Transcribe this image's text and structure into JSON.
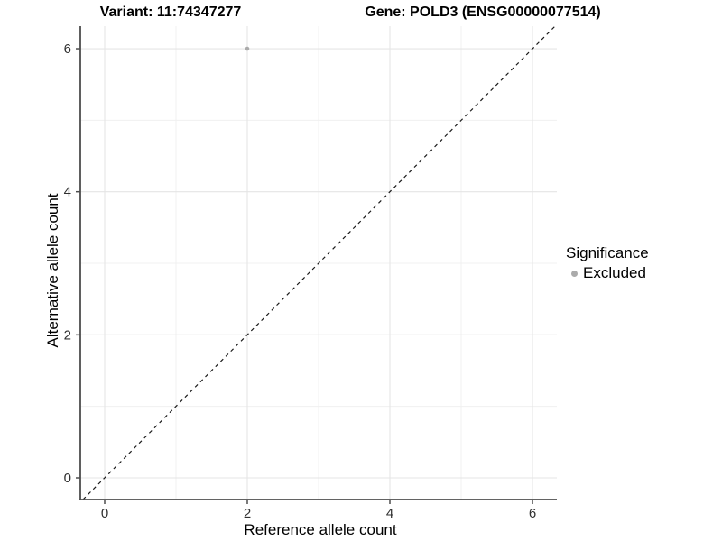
{
  "titles": {
    "left": "Variant: 11:74347277",
    "right": "Gene: POLD3 (ENSG00000077514)"
  },
  "axes": {
    "x": {
      "label": "Reference allele count"
    },
    "y": {
      "label": "Alternative allele count"
    }
  },
  "legend": {
    "title": "Significance",
    "items": [
      {
        "label": "Excluded",
        "color": "#ababab"
      }
    ]
  },
  "chart_data": {
    "type": "scatter",
    "title_left": "Variant: 11:74347277",
    "title_right": "Gene: POLD3 (ENSG00000077514)",
    "xlabel": "Reference allele count",
    "ylabel": "Alternative allele count",
    "xlim": [
      -0.3,
      6.3
    ],
    "ylim": [
      -0.3,
      6.3
    ],
    "x_ticks": [
      0,
      2,
      4,
      6
    ],
    "y_ticks": [
      0,
      2,
      4,
      6
    ],
    "x_minor": [
      1,
      3,
      5
    ],
    "y_minor": [
      1,
      3,
      5
    ],
    "grid": "major+minor",
    "legend_position": "right",
    "legend_title": "Significance",
    "series": [
      {
        "name": "Excluded",
        "color": "#ababab",
        "points": [
          {
            "x": 2,
            "y": 6
          }
        ]
      }
    ],
    "reference_line": {
      "type": "abline",
      "slope": 1,
      "intercept": 0,
      "style": "dashed",
      "color": "#1a1a1a"
    },
    "colors": {
      "axis_line": "#4d4d4d",
      "tick_label": "#303030",
      "grid_major": "#e5e5e5",
      "grid_minor": "#f0f0f0"
    }
  }
}
